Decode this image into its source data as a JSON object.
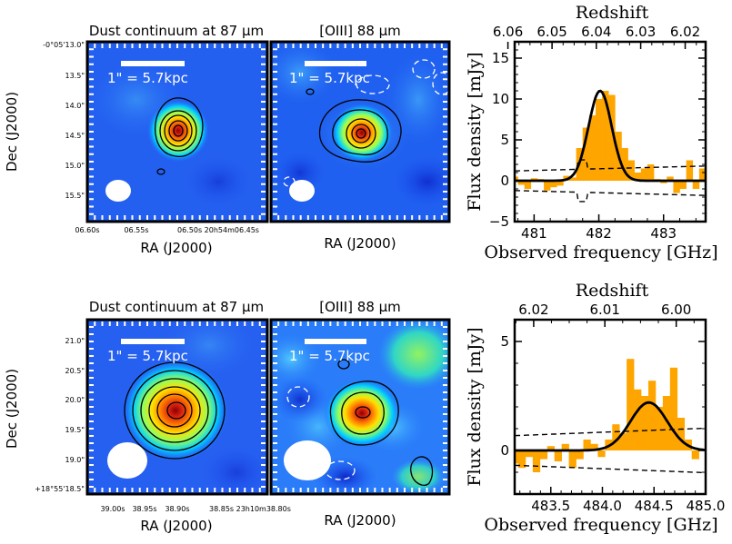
{
  "maps": [
    {
      "ra_ticks": [
        "06.60s",
        "06.55s",
        "06.50s 20h54m06.45s"
      ],
      "dec_ticks": [
        "-0°05'13.0\"",
        "13.5\"",
        "14.0\"",
        "14.5\"",
        "15.0\"",
        "15.5\""
      ],
      "panels": [
        {
          "title": "Dust continuum at 87 μm",
          "scalebar": "1\" = 5.7kpc",
          "xlabel": "RA (J2000)",
          "ylabel": "Dec (J2000)"
        },
        {
          "title": "[OIII] 88 μm",
          "scalebar": "1\" = 5.7kpc",
          "xlabel": "RA (J2000)"
        }
      ]
    },
    {
      "ra_ticks": [
        "39.00s",
        "38.95s",
        "38.90s",
        "38.85s 23h10m38.80s"
      ],
      "dec_ticks": [
        "21.0\"",
        "20.5\"",
        "20.0\"",
        "19.5\"",
        "19.0\"",
        "+18°55'18.5\""
      ],
      "panels": [
        {
          "title": "Dust continuum at 87 μm",
          "scalebar": "1\" = 5.7kpc",
          "xlabel": "RA (J2000)",
          "ylabel": "Dec (J2000)"
        },
        {
          "title": "[OIII] 88 μm",
          "scalebar": "1\" = 5.7kpc",
          "xlabel": "RA (J2000)"
        }
      ]
    }
  ],
  "chart_data": [
    {
      "type": "bar",
      "xlabel": "Observed frequency [GHz]",
      "ylabel": "Flux density [mJy]",
      "top_axis_label": "Redshift",
      "xlim": [
        480.7,
        483.65
      ],
      "ylim": [
        -5,
        17
      ],
      "xticks": [
        481,
        482,
        483
      ],
      "yticks": [
        -5,
        0,
        5,
        10,
        15
      ],
      "top_ticks": [
        6.06,
        6.05,
        6.04,
        6.03,
        6.02
      ],
      "bar_color": "#ffa500",
      "spectrum": {
        "x": [
          480.7,
          480.8,
          480.9,
          481.0,
          481.1,
          481.2,
          481.3,
          481.4,
          481.5,
          481.6,
          481.7,
          481.8,
          481.9,
          482.0,
          482.1,
          482.2,
          482.3,
          482.4,
          482.5,
          482.6,
          482.7,
          482.8,
          482.9,
          483.0,
          483.1,
          483.2,
          483.3,
          483.4,
          483.5,
          483.6
        ],
        "y": [
          0.5,
          -0.5,
          -1.0,
          0.3,
          0.2,
          -1.2,
          -0.8,
          -0.6,
          0.6,
          0.4,
          4.0,
          6.5,
          8.0,
          10.0,
          11.0,
          10.5,
          6.0,
          4.0,
          2.5,
          1.0,
          1.5,
          2.0,
          0.2,
          -0.3,
          0.5,
          -1.5,
          -1.0,
          2.5,
          -1.0,
          1.5
        ]
      },
      "gaussian_fit": {
        "peak": 11.0,
        "center": 482.02,
        "fwhm": 0.42
      },
      "noise_envelope": {
        "level": 1.5
      }
    },
    {
      "type": "bar",
      "xlabel": "Observed frequency [GHz]",
      "ylabel": "Flux density [mJy]",
      "top_axis_label": "Redshift",
      "xlim": [
        483.15,
        485.0
      ],
      "ylim": [
        -2,
        6
      ],
      "xticks": [
        483.5,
        484.0,
        484.5,
        485.0
      ],
      "yticks": [
        0,
        5
      ],
      "top_ticks": [
        6.02,
        6.01,
        6.0
      ],
      "bar_color": "#ffa500",
      "spectrum": {
        "x": [
          483.15,
          483.22,
          483.29,
          483.36,
          483.43,
          483.5,
          483.57,
          483.64,
          483.71,
          483.78,
          483.85,
          483.92,
          483.99,
          484.06,
          484.13,
          484.2,
          484.27,
          484.34,
          484.41,
          484.48,
          484.55,
          484.62,
          484.69,
          484.76,
          484.83,
          484.9
        ],
        "y": [
          -0.6,
          -0.8,
          -0.3,
          -1.0,
          -0.4,
          0.2,
          -0.5,
          0.3,
          -0.8,
          -0.4,
          0.5,
          0.3,
          -0.3,
          0.5,
          1.2,
          0.8,
          4.2,
          2.8,
          2.5,
          3.2,
          2.0,
          2.5,
          3.8,
          1.5,
          0.5,
          -0.4
        ]
      },
      "gaussian_fit": {
        "peak": 2.2,
        "center": 484.45,
        "fwhm": 0.42
      },
      "noise_envelope": {
        "level": 0.85
      }
    }
  ]
}
